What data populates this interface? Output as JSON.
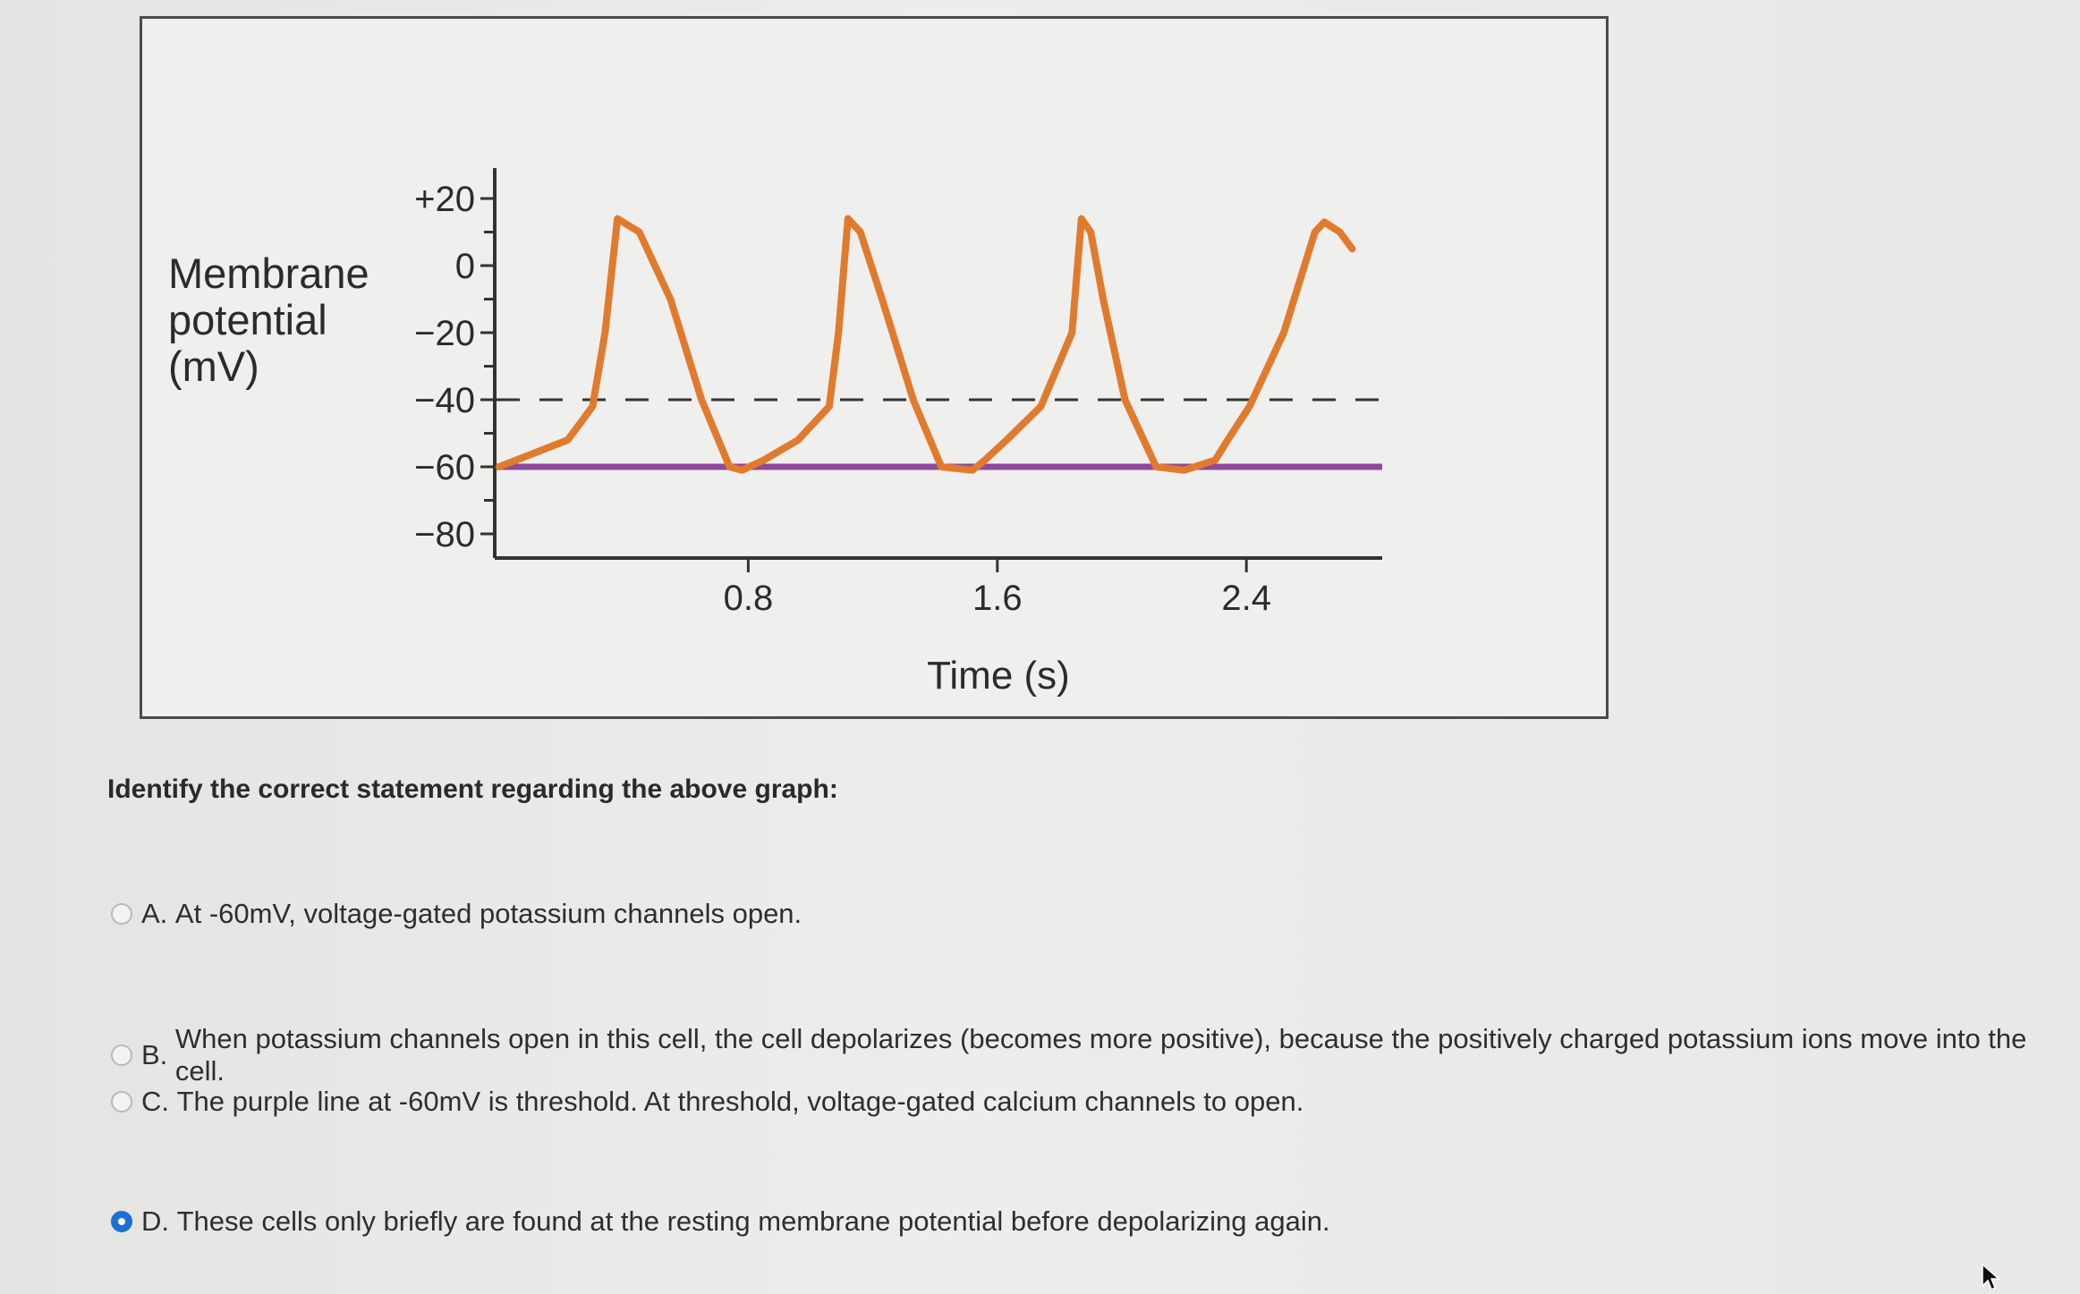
{
  "question": {
    "prompt": "Identify the correct statement regarding the above graph:",
    "options": [
      {
        "letter": "A.",
        "text": "At -60mV, voltage-gated potassium channels open.",
        "selected": false
      },
      {
        "letter": "B.",
        "text": "When potassium channels open in this cell, the cell depolarizes (becomes more positive), because the positively charged potassium ions move into the cell.",
        "selected": false
      },
      {
        "letter": "C.",
        "text": "The purple line at -60mV is threshold. At threshold, voltage-gated calcium channels to open.",
        "selected": false
      },
      {
        "letter": "D.",
        "text": "These cells only briefly are found at the resting membrane potential before depolarizing again.",
        "selected": true
      }
    ]
  },
  "chart_data": {
    "type": "line",
    "ylabel": "Membrane\npotential\n(mV)",
    "xlabel": "Time (s)",
    "ylim": [
      -85,
      25
    ],
    "yticks": [
      "+20",
      "0",
      "−20",
      "−40",
      "−60",
      "−80"
    ],
    "ytick_values": [
      20,
      0,
      -20,
      -40,
      -60,
      -80
    ],
    "xticks": [
      "0.8",
      "1.6",
      "2.4"
    ],
    "xtick_values": [
      0.8,
      1.6,
      2.4
    ],
    "series": [
      {
        "color": "#e07b2e",
        "x": [
          0.0,
          0.22,
          0.3,
          0.34,
          0.38,
          0.45,
          0.55,
          0.65,
          0.74,
          0.78,
          0.85,
          0.96,
          1.06,
          1.09,
          1.12,
          1.16,
          1.23,
          1.33,
          1.42,
          1.52,
          1.56,
          1.63,
          1.74,
          1.84,
          1.87,
          1.9,
          1.94,
          2.01,
          2.11,
          2.2,
          2.3,
          2.34,
          2.41,
          2.52,
          2.6,
          2.62,
          2.65,
          2.7,
          2.74
        ],
        "y": [
          -60,
          -52,
          -42,
          -20,
          14,
          10,
          -10,
          -40,
          -60,
          -61,
          -58,
          -52,
          -42,
          -20,
          14,
          10,
          -10,
          -40,
          -60,
          -61,
          -58,
          -52,
          -42,
          -20,
          14,
          10,
          -10,
          -40,
          -60,
          -61,
          -58,
          -52,
          -42,
          -20,
          4,
          10,
          13,
          10,
          5
        ]
      }
    ],
    "reference_lines": [
      {
        "y": -40,
        "style": "dashed",
        "color": "#333333"
      },
      {
        "y": -60,
        "style": "solid",
        "color": "#8b4a9c"
      }
    ]
  }
}
